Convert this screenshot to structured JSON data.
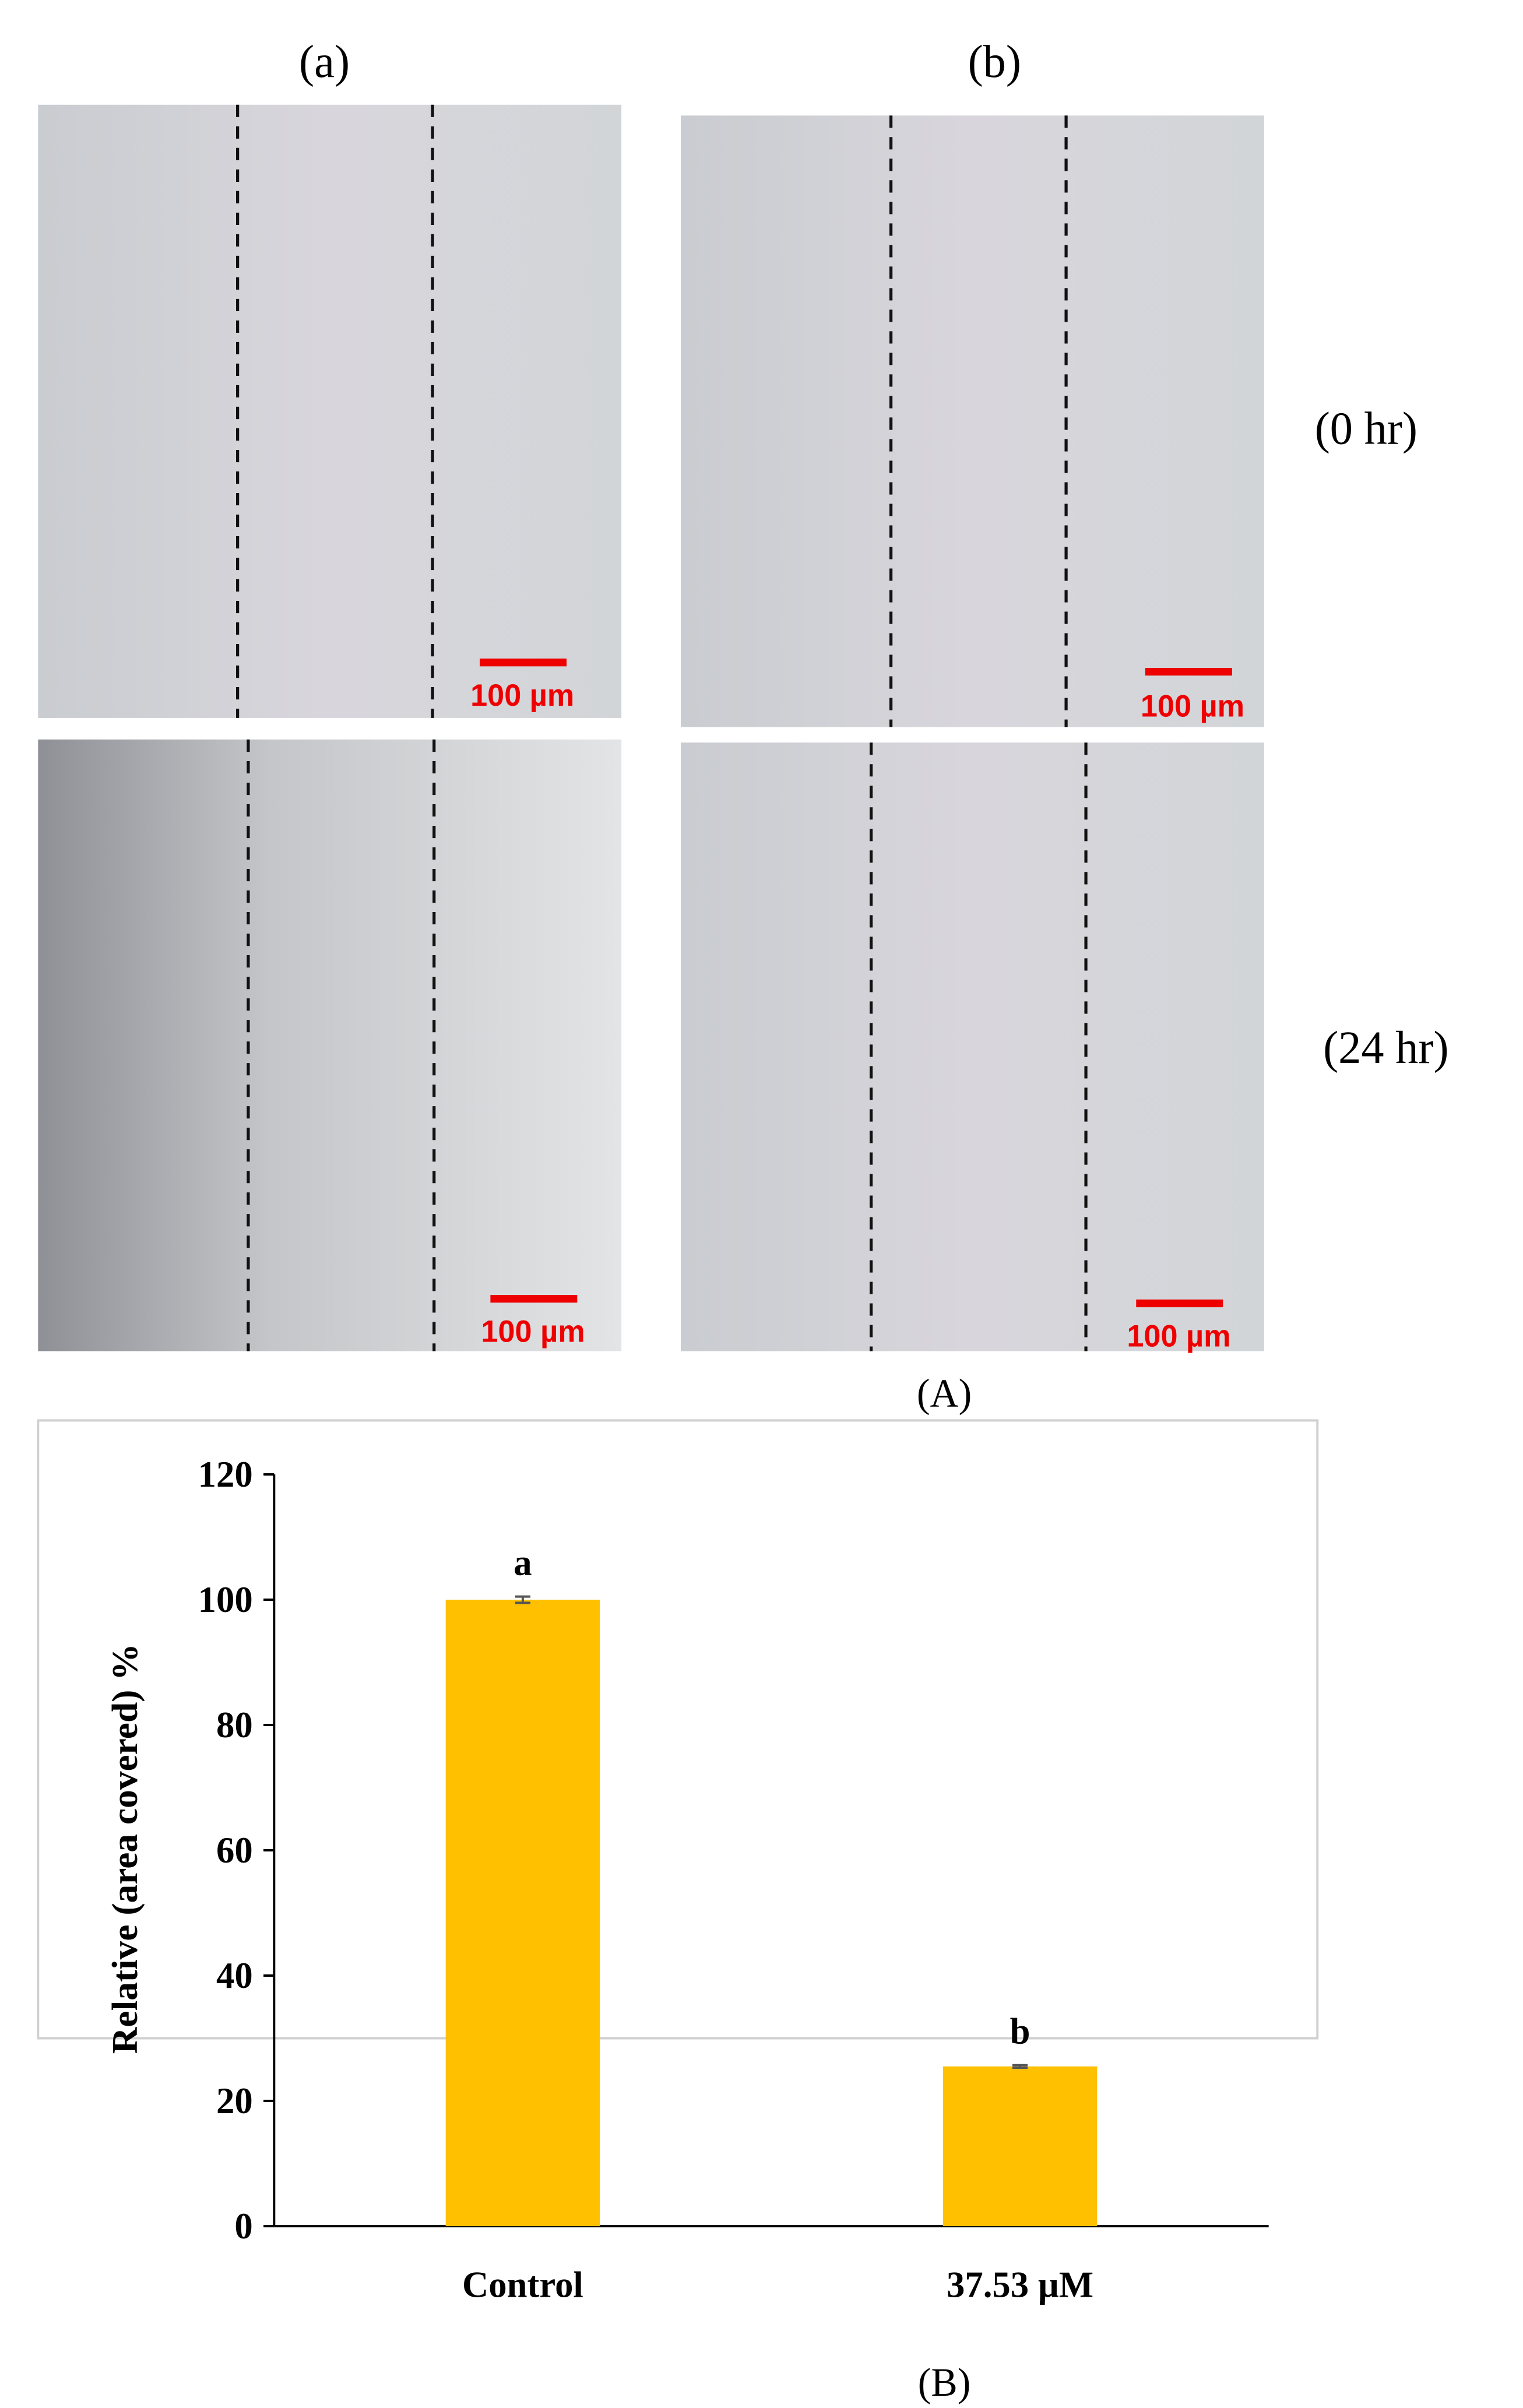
{
  "figure": {
    "column_labels": [
      "(a)",
      "(b)"
    ],
    "row_labels": [
      "(0 hr)",
      "(24 hr)"
    ],
    "scale_bars": [
      "100 µm",
      "100 µm",
      "100 µm",
      "100 µm"
    ],
    "panel_A": "(A)",
    "panel_B": "(B)"
  },
  "chart_data": {
    "type": "bar",
    "ylabel": "Relative (area covered) %",
    "categories": [
      "Control",
      "37.53 µM"
    ],
    "values": [
      100,
      25.5
    ],
    "errors": [
      0.5,
      0.2
    ],
    "annotations": [
      "a",
      "b"
    ],
    "color": "#FFC000",
    "ylim": [
      0,
      120
    ],
    "yticks": [
      0,
      20,
      40,
      60,
      80,
      100,
      120
    ],
    "grid": false
  }
}
